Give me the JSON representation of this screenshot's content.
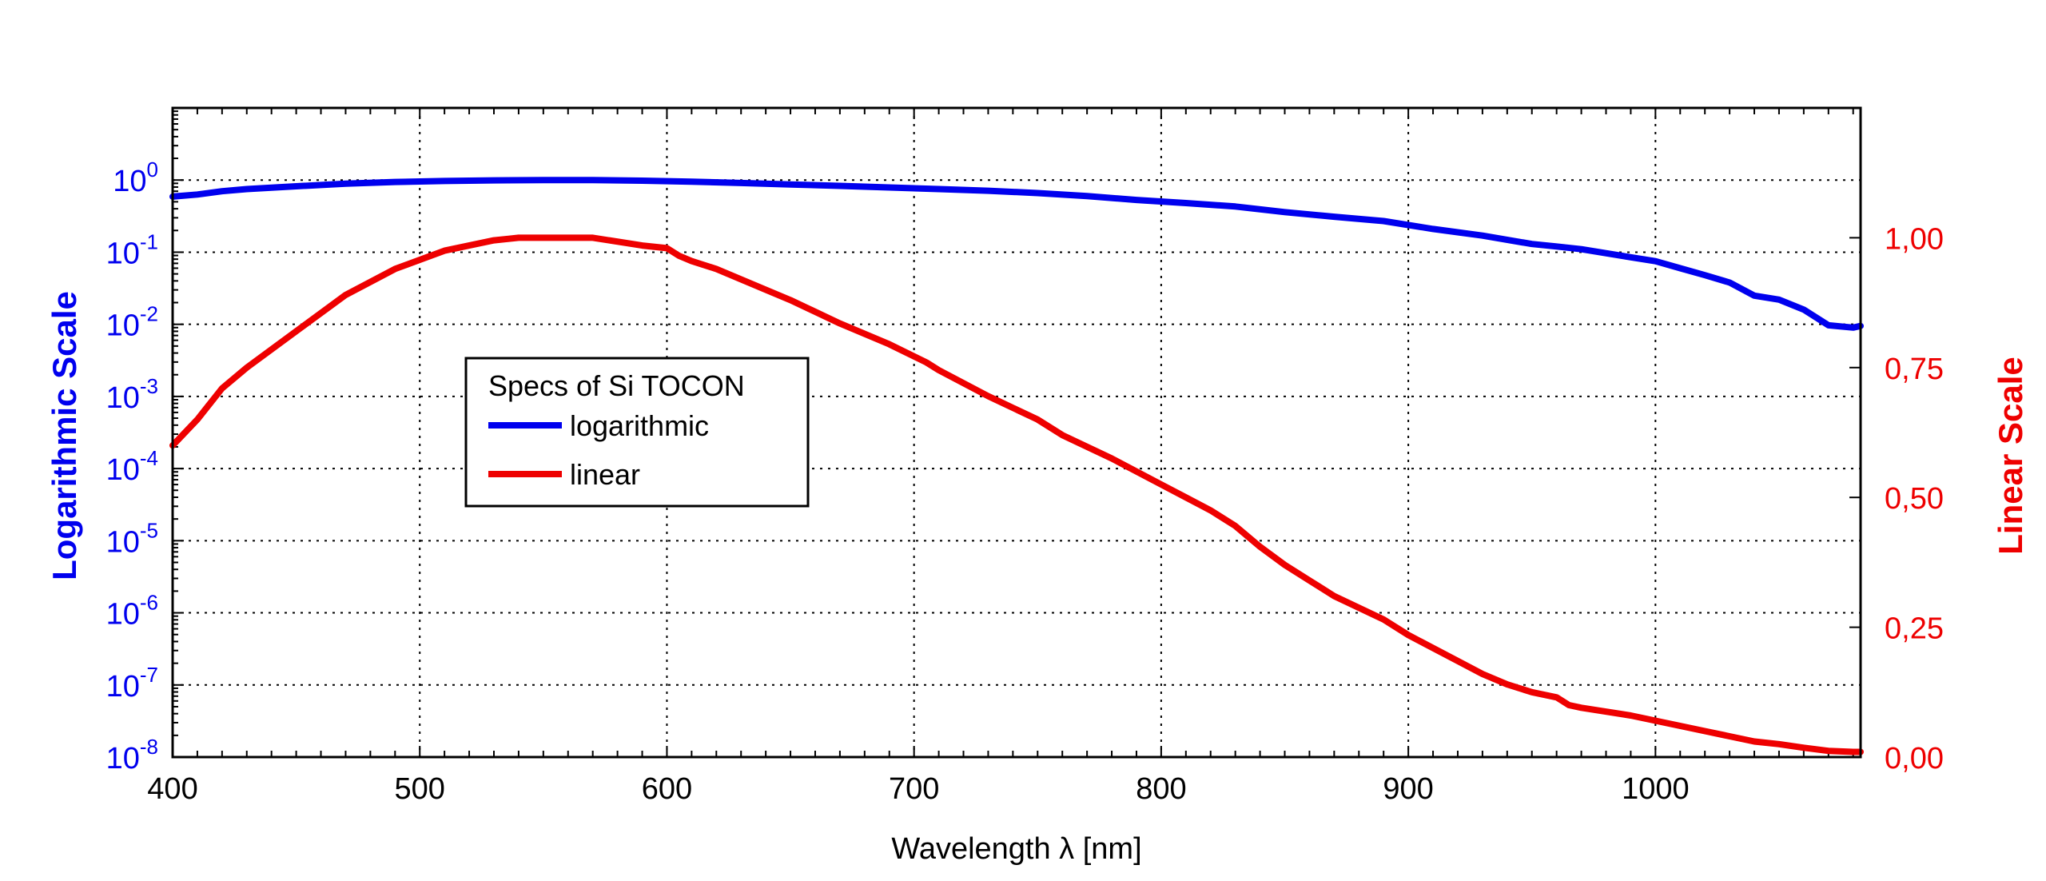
{
  "chart_data": {
    "type": "line",
    "xlabel": "Wavelength λ [nm]",
    "xlim": [
      400,
      1083
    ],
    "x_ticks": [
      400,
      500,
      600,
      700,
      800,
      900,
      1000
    ],
    "y_left": {
      "label": "Logarithmic Scale",
      "scale": "log",
      "ylim": [
        1e-08,
        10
      ],
      "ticks": [
        {
          "base": "10",
          "exp": "0"
        },
        {
          "base": "10",
          "exp": "-1"
        },
        {
          "base": "10",
          "exp": "-2"
        },
        {
          "base": "10",
          "exp": "-3"
        },
        {
          "base": "10",
          "exp": "-4"
        },
        {
          "base": "10",
          "exp": "-5"
        },
        {
          "base": "10",
          "exp": "-6"
        },
        {
          "base": "10",
          "exp": "-7"
        },
        {
          "base": "10",
          "exp": "-8"
        }
      ],
      "color": "#0000ee"
    },
    "y_right": {
      "label": "Linear Scale",
      "scale": "linear",
      "ylim": [
        0,
        1.25
      ],
      "ticks": [
        "1,00",
        "0,75",
        "0,50",
        "0,25",
        "0,00"
      ],
      "color": "#ee0000"
    },
    "grid": true,
    "legend": {
      "title": "Specs of Si TOCON",
      "position": "center-left",
      "entries": [
        "logarithmic",
        "linear"
      ]
    },
    "series": [
      {
        "name": "logarithmic",
        "axis": "left",
        "color": "#0000ee",
        "x": [
          400,
          410,
          420,
          430,
          450,
          470,
          490,
          510,
          530,
          550,
          570,
          590,
          610,
          630,
          650,
          670,
          690,
          710,
          730,
          750,
          770,
          790,
          810,
          830,
          850,
          870,
          890,
          910,
          930,
          950,
          960,
          970,
          990,
          1000,
          1010,
          1020,
          1030,
          1040,
          1050,
          1060,
          1070,
          1080,
          1083
        ],
        "y": [
          0.59,
          0.63,
          0.7,
          0.75,
          0.82,
          0.89,
          0.94,
          0.97,
          0.99,
          1.0,
          1.0,
          0.98,
          0.95,
          0.91,
          0.87,
          0.83,
          0.79,
          0.75,
          0.71,
          0.66,
          0.6,
          0.53,
          0.48,
          0.43,
          0.36,
          0.31,
          0.27,
          0.21,
          0.17,
          0.13,
          0.12,
          0.11,
          0.085,
          0.075,
          0.06,
          0.048,
          0.038,
          0.025,
          0.022,
          0.016,
          0.0097,
          0.009,
          0.0095
        ]
      },
      {
        "name": "linear",
        "axis": "right",
        "color": "#ee0000",
        "x": [
          400,
          410,
          420,
          430,
          450,
          470,
          490,
          510,
          530,
          540,
          550,
          570,
          590,
          600,
          605,
          610,
          620,
          630,
          640,
          650,
          670,
          690,
          705,
          710,
          730,
          750,
          760,
          780,
          800,
          810,
          820,
          830,
          840,
          850,
          860,
          870,
          890,
          900,
          910,
          920,
          930,
          940,
          950,
          960,
          965,
          970,
          990,
          1000,
          1010,
          1020,
          1030,
          1040,
          1050,
          1060,
          1070,
          1080,
          1083
        ],
        "y": [
          0.6,
          0.65,
          0.71,
          0.75,
          0.82,
          0.89,
          0.94,
          0.975,
          0.995,
          1.0,
          1.0,
          1.0,
          0.985,
          0.98,
          0.965,
          0.955,
          0.94,
          0.92,
          0.9,
          0.88,
          0.835,
          0.795,
          0.76,
          0.745,
          0.695,
          0.65,
          0.62,
          0.575,
          0.525,
          0.5,
          0.475,
          0.445,
          0.405,
          0.37,
          0.34,
          0.31,
          0.265,
          0.235,
          0.21,
          0.185,
          0.16,
          0.14,
          0.125,
          0.115,
          0.1,
          0.095,
          0.08,
          0.07,
          0.06,
          0.05,
          0.04,
          0.03,
          0.025,
          0.018,
          0.012,
          0.01,
          0.01
        ]
      }
    ]
  }
}
